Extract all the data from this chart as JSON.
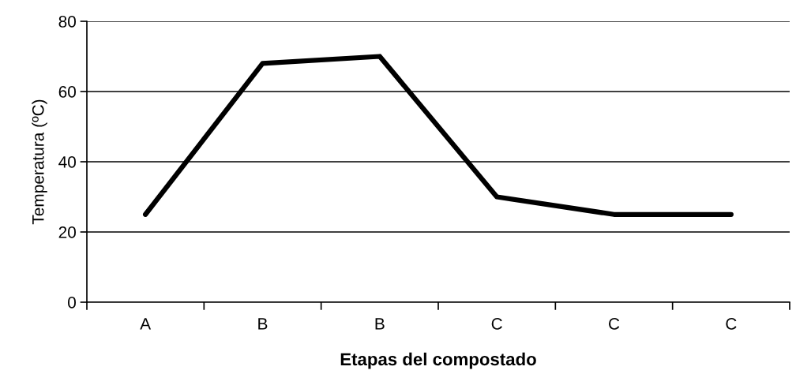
{
  "chart_data": {
    "type": "line",
    "xlabel": "Etapas del compostado",
    "ylabel": "Temperatura (ºC)",
    "categories": [
      "A",
      "B",
      "B",
      "C",
      "C",
      "C"
    ],
    "series": [
      {
        "color": "#000000",
        "values": [
          25,
          68,
          70,
          30,
          25,
          25
        ]
      }
    ],
    "ylim": [
      0,
      80
    ],
    "yticks": [
      0,
      20,
      40,
      60,
      80
    ],
    "grid": "y",
    "marker": "none",
    "line_style": "solid"
  }
}
